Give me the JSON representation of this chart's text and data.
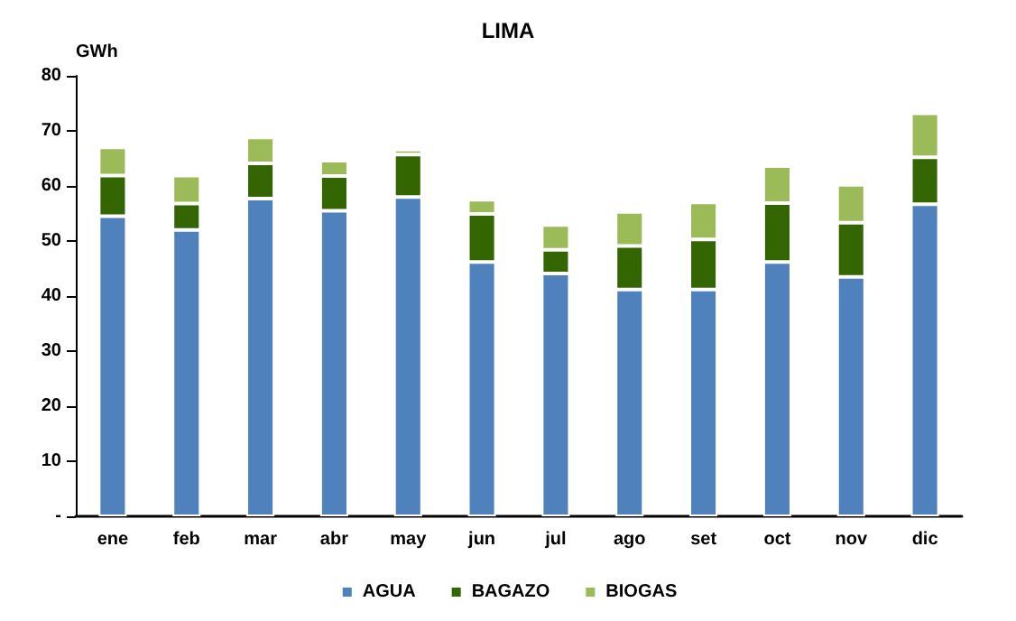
{
  "chart_data": {
    "type": "bar",
    "title": "LIMA",
    "ylabel": "GWh",
    "stacked": true,
    "categories": [
      "ene",
      "feb",
      "mar",
      "abr",
      "may",
      "jun",
      "jul",
      "ago",
      "set",
      "oct",
      "nov",
      "dic"
    ],
    "series": [
      {
        "name": "AGUA",
        "color": "#4f81bd",
        "values": [
          54.5,
          52.0,
          57.7,
          55.5,
          58.0,
          46.2,
          44.1,
          41.2,
          41.2,
          46.2,
          43.5,
          56.7
        ]
      },
      {
        "name": "BAGAZO",
        "color": "#336600",
        "values": [
          7.4,
          4.8,
          6.4,
          6.3,
          7.7,
          8.7,
          4.3,
          7.9,
          9.1,
          10.7,
          9.8,
          8.5
        ]
      },
      {
        "name": "BIOGAS",
        "color": "#9bbb59",
        "values": [
          5.1,
          5.1,
          4.7,
          2.8,
          0.9,
          2.6,
          4.5,
          6.2,
          6.7,
          6.7,
          6.9,
          8.0
        ]
      }
    ],
    "ylim": [
      0,
      80
    ],
    "yticks": [
      {
        "value": 0,
        "label": "-"
      },
      10,
      20,
      30,
      40,
      50,
      60,
      70,
      80
    ],
    "grid": false,
    "legend": "bottom"
  }
}
